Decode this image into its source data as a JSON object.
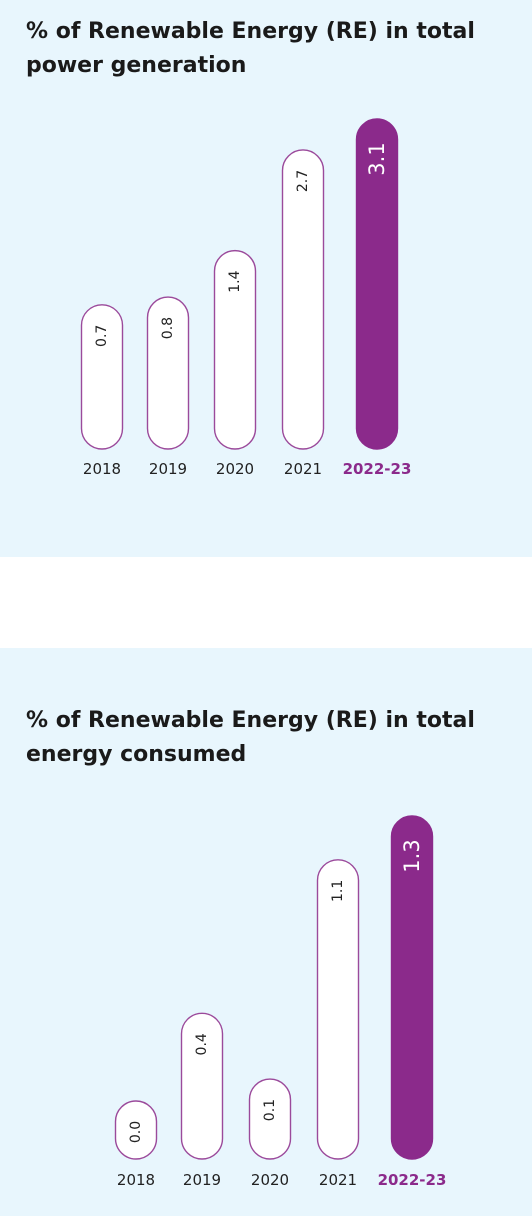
{
  "colors": {
    "accent": "#8b2a8b",
    "bar_outline": "#9b4a9b",
    "background": "#e8f6fd",
    "axis_text": "#222222"
  },
  "chart_data": [
    {
      "type": "bar",
      "title": "% of Renewable Energy (RE) in total power generation",
      "categories": [
        "2018",
        "2019",
        "2020",
        "2021",
        "2022-23"
      ],
      "values": [
        0.7,
        0.8,
        1.4,
        2.7,
        3.1
      ],
      "value_labels": [
        "0.7",
        "0.8",
        "1.4",
        "2.7",
        "3.1"
      ],
      "highlight_index": 4,
      "grid": false,
      "ylim": [
        0,
        3.1
      ]
    },
    {
      "type": "bar",
      "title": "% of Renewable Energy (RE) in total energy consumed",
      "categories": [
        "2018",
        "2019",
        "2020",
        "2021",
        "2022-23"
      ],
      "values": [
        0.0,
        0.4,
        0.1,
        1.1,
        1.3
      ],
      "value_labels": [
        "0.0",
        "0.4",
        "0.1",
        "1.1",
        "1.3"
      ],
      "highlight_index": 4,
      "grid": false,
      "ylim": [
        0,
        1.3
      ]
    }
  ]
}
